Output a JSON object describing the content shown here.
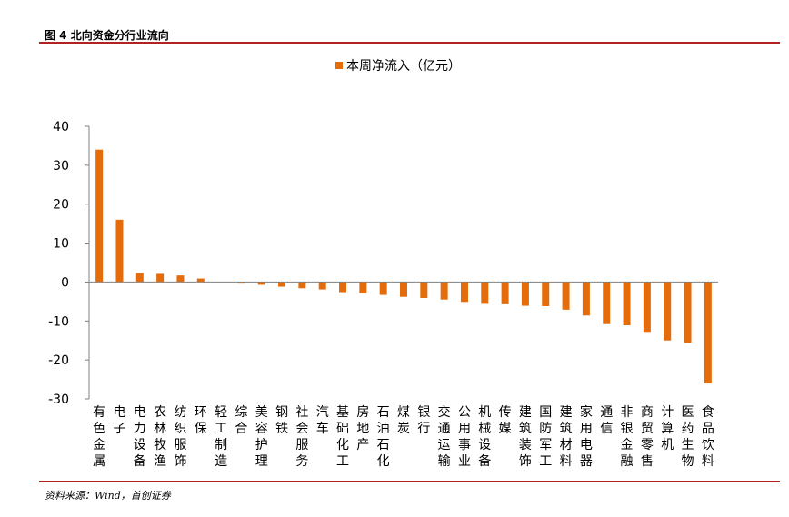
{
  "figure": {
    "title": "图 4 北向资金分行业流向",
    "source": "资料来源：Wind，首创证券"
  },
  "colors": {
    "bar": "#e46c0a",
    "rule": "#b22222",
    "axis": "#808080"
  },
  "chart_data": {
    "type": "bar",
    "grid": false,
    "legend_position": "top-center",
    "ylim": [
      -30,
      40
    ],
    "yticks": [
      40,
      30,
      20,
      10,
      0,
      -10,
      -20,
      -30
    ],
    "categories": [
      "有色金属",
      "电子",
      "电力设备",
      "农林牧渔",
      "纺织服饰",
      "环保",
      "轻工制造",
      "综合",
      "美容护理",
      "钢铁",
      "社会服务",
      "汽车",
      "基础化工",
      "房地产",
      "石油石化",
      "煤炭",
      "银行",
      "交通运输",
      "公用事业",
      "机械设备",
      "传媒",
      "建筑装饰",
      "国防军工",
      "建筑材料",
      "家用电器",
      "通信",
      "非银金融",
      "商贸零售",
      "计算机",
      "医药生物",
      "食品饮料"
    ],
    "series": [
      {
        "name": "本周净流入（亿元）",
        "values": [
          34.0,
          16.0,
          2.3,
          2.1,
          1.7,
          0.9,
          0.0,
          -0.4,
          -0.7,
          -1.2,
          -1.6,
          -1.9,
          -2.6,
          -2.9,
          -3.3,
          -3.8,
          -4.1,
          -4.5,
          -5.1,
          -5.6,
          -5.7,
          -6.1,
          -6.2,
          -7.1,
          -8.6,
          -10.8,
          -11.1,
          -12.8,
          -15.0,
          -15.6,
          -26.0
        ]
      }
    ]
  }
}
